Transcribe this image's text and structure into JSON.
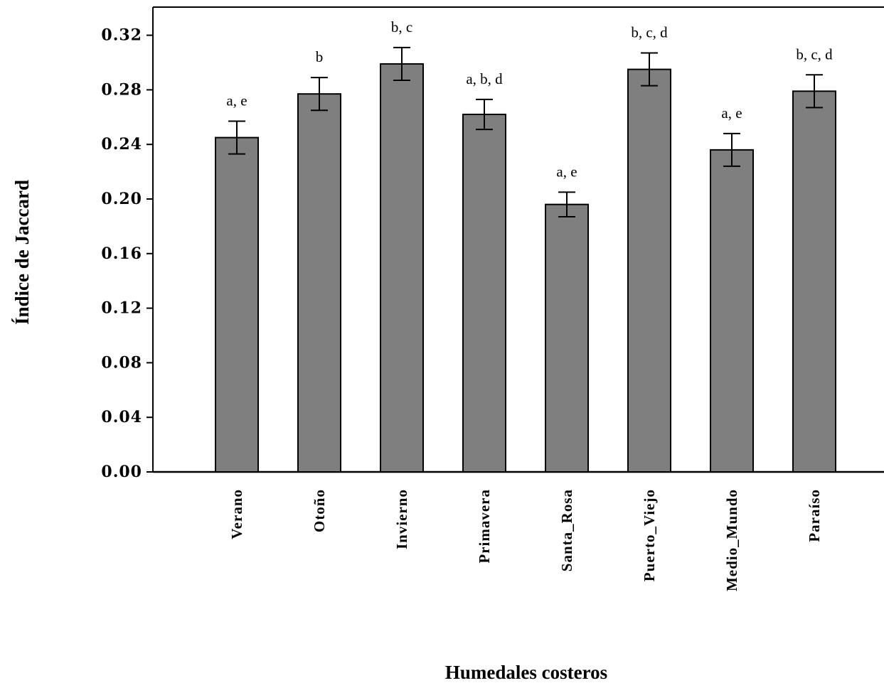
{
  "chart_data": {
    "type": "bar",
    "title": "",
    "xlabel": "Humedales costeros",
    "ylabel": "Índice de Jaccard",
    "ylim": [
      0,
      0.34
    ],
    "yticks": [
      "0.00",
      "0.04",
      "0.08",
      "0.12",
      "0.16",
      "0.20",
      "0.24",
      "0.28",
      "0.32"
    ],
    "categories": [
      "Verano",
      "Otoño",
      "Invierno",
      "Primavera",
      "Santa_Rosa",
      "Puerto_Viejo",
      "Medio_Mundo",
      "Paraíso"
    ],
    "values": [
      0.245,
      0.277,
      0.299,
      0.262,
      0.196,
      0.295,
      0.236,
      0.279
    ],
    "errors": [
      0.012,
      0.012,
      0.012,
      0.011,
      0.009,
      0.012,
      0.012,
      0.012
    ],
    "significance_labels": [
      "a, e",
      "b",
      "b, c",
      "a, b, d",
      "a, e",
      "b, c, d",
      "a, e",
      "b, c, d"
    ],
    "grid": false,
    "legend": "none",
    "colors": {
      "bar": "#7f7f7f",
      "bar_stroke": "#000000",
      "axis": "#000000"
    }
  }
}
